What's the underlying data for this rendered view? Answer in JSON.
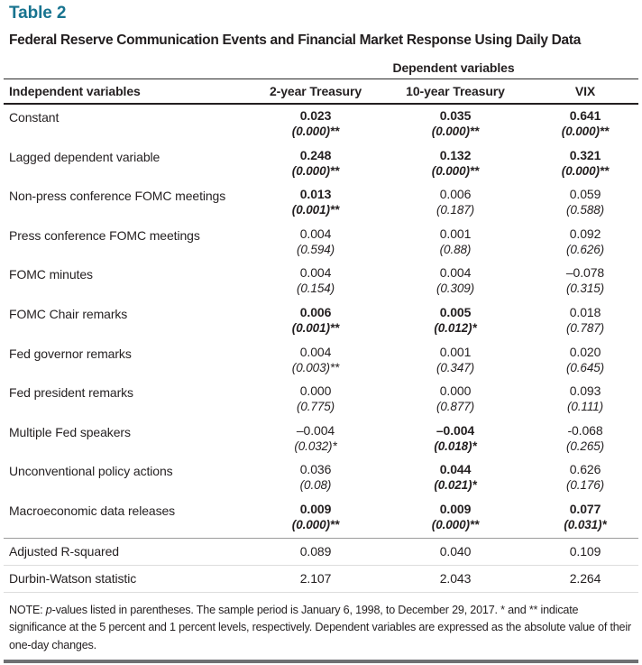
{
  "page": {
    "table_label": "Table 2",
    "title": "Federal Reserve Communication Events and Financial Market Response Using Daily Data",
    "accent_color": "#17738F"
  },
  "table": {
    "group_header": "Dependent variables",
    "columns": [
      "Independent variables",
      "2-year Treasury",
      "10-year Treasury",
      "VIX"
    ],
    "rows": [
      {
        "label": "Constant",
        "cells": [
          {
            "coef": "0.023",
            "pval": "(0.000)**",
            "bold": true
          },
          {
            "coef": "0.035",
            "pval": "(0.000)**",
            "bold": true
          },
          {
            "coef": "0.641",
            "pval": "(0.000)**",
            "bold": true
          }
        ]
      },
      {
        "label": "Lagged dependent variable",
        "cells": [
          {
            "coef": "0.248",
            "pval": "(0.000)**",
            "bold": true
          },
          {
            "coef": "0.132",
            "pval": "(0.000)**",
            "bold": true
          },
          {
            "coef": "0.321",
            "pval": "(0.000)**",
            "bold": true
          }
        ]
      },
      {
        "label": "Non-press conference FOMC meetings",
        "cells": [
          {
            "coef": "0.013",
            "pval": "(0.001)**",
            "bold": true
          },
          {
            "coef": "0.006",
            "pval": "(0.187)",
            "bold": false
          },
          {
            "coef": "0.059",
            "pval": "(0.588)",
            "bold": false
          }
        ]
      },
      {
        "label": "Press conference FOMC meetings",
        "cells": [
          {
            "coef": "0.004",
            "pval": "(0.594)",
            "bold": false
          },
          {
            "coef": "0.001",
            "pval": "(0.88)",
            "bold": false
          },
          {
            "coef": "0.092",
            "pval": "(0.626)",
            "bold": false
          }
        ]
      },
      {
        "label": "FOMC minutes",
        "cells": [
          {
            "coef": "0.004",
            "pval": "(0.154)",
            "bold": false
          },
          {
            "coef": "0.004",
            "pval": "(0.309)",
            "bold": false
          },
          {
            "coef": "–0.078",
            "pval": "(0.315)",
            "bold": false
          }
        ]
      },
      {
        "label": "FOMC Chair remarks",
        "cells": [
          {
            "coef": "0.006",
            "pval": "(0.001)**",
            "bold": true
          },
          {
            "coef": "0.005",
            "pval": "(0.012)*",
            "bold": true
          },
          {
            "coef": "0.018",
            "pval": "(0.787)",
            "bold": false
          }
        ]
      },
      {
        "label": "Fed governor remarks",
        "cells": [
          {
            "coef": "0.004",
            "pval": "(0.003)**",
            "bold": false
          },
          {
            "coef": "0.001",
            "pval": "(0.347)",
            "bold": false
          },
          {
            "coef": "0.020",
            "pval": "(0.645)",
            "bold": false
          }
        ]
      },
      {
        "label": "Fed president remarks",
        "cells": [
          {
            "coef": "0.000",
            "pval": "(0.775)",
            "bold": false
          },
          {
            "coef": "0.000",
            "pval": "(0.877)",
            "bold": false
          },
          {
            "coef": "0.093",
            "pval": "(0.111)",
            "bold": false
          }
        ]
      },
      {
        "label": "Multiple Fed speakers",
        "cells": [
          {
            "coef": "–0.004",
            "pval": "(0.032)*",
            "bold": false
          },
          {
            "coef": "–0.004",
            "pval": "(0.018)*",
            "bold": true
          },
          {
            "coef": "-0.068",
            "pval": "(0.265)",
            "bold": false
          }
        ]
      },
      {
        "label": "Unconventional policy actions",
        "cells": [
          {
            "coef": "0.036",
            "pval": "(0.08)",
            "bold": false
          },
          {
            "coef": "0.044",
            "pval": "(0.021)*",
            "bold": true
          },
          {
            "coef": "0.626",
            "pval": "(0.176)",
            "bold": false
          }
        ]
      },
      {
        "label": "Macroeconomic data releases",
        "cells": [
          {
            "coef": "0.009",
            "pval": "(0.000)**",
            "bold": true
          },
          {
            "coef": "0.009",
            "pval": "(0.000)**",
            "bold": true
          },
          {
            "coef": "0.077",
            "pval": "(0.031)*",
            "bold": true
          }
        ]
      }
    ],
    "stat_rows": [
      {
        "label": "Adjusted R-squared",
        "values": [
          "0.089",
          "0.040",
          "0.109"
        ]
      },
      {
        "label": "Durbin-Watson statistic",
        "values": [
          "2.107",
          "2.043",
          "2.264"
        ]
      }
    ]
  },
  "note": {
    "prefix": "NOTE: ",
    "italic_term": "p",
    "text": "-values listed in parentheses. The sample period is January 6, 1998, to December 29, 2017. * and ** indicate significance at the 5 percent and 1 percent levels, respectively. Dependent variables are expressed as the absolute value of their one-day changes."
  }
}
